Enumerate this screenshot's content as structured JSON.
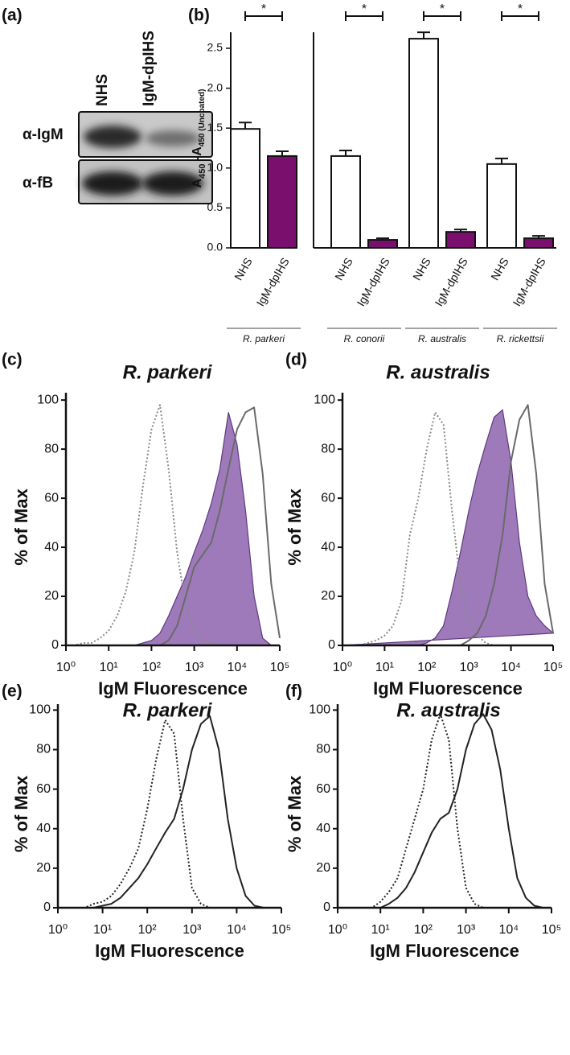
{
  "blot": {
    "label": "(a)",
    "lanes": [
      "NHS",
      "IgM-dpIHS"
    ],
    "rows": [
      "α-IgM",
      "α-fB"
    ]
  },
  "chart_data": [
    {
      "type": "bar",
      "panel_label": "(b)",
      "ylabel_parts": [
        "A",
        "450",
        " -A",
        "450 (Uncoated)"
      ],
      "categories": [
        "R. parkeri",
        "R. conorii",
        "R. australis",
        "R. rickettsii"
      ],
      "series": [
        {
          "name": "NHS",
          "color": "#ffffff",
          "values": [
            1.49,
            1.15,
            2.62,
            1.05
          ],
          "errors": [
            0.08,
            0.07,
            0.08,
            0.07
          ]
        },
        {
          "name": "IgM-dpIHS",
          "color": "#7b0f6e",
          "values": [
            1.15,
            0.1,
            0.2,
            0.12
          ],
          "errors": [
            0.06,
            0.02,
            0.03,
            0.03
          ]
        }
      ],
      "annotations": [
        "*",
        "*",
        "*",
        "*"
      ],
      "ylim": [
        0,
        2.7
      ],
      "yticks": [
        {
          "value": 0,
          "label": "0.0"
        },
        0.5,
        {
          "value": 1,
          "label": "1.0"
        },
        1.5,
        {
          "value": 2,
          "label": "2.0"
        },
        2.5
      ]
    },
    {
      "type": "histogram-overlay",
      "panel_label": "(c)",
      "title": "R. parkeri",
      "xlabel": "IgM Fluorescence",
      "ylabel": "% of Max",
      "xscale": "log",
      "xlim": [
        1,
        100000
      ],
      "ylim": [
        0,
        103
      ],
      "xticks": [
        {
          "value": 1,
          "label": "10⁰"
        },
        {
          "value": 10,
          "label": "10¹"
        },
        {
          "value": 100,
          "label": "10²"
        },
        {
          "value": 1000,
          "label": "10³"
        },
        {
          "value": 10000,
          "label": "10⁴"
        },
        {
          "value": 100000,
          "label": "10⁵"
        }
      ],
      "yticks": [
        0,
        20,
        40,
        60,
        80,
        100
      ],
      "x": [
        1,
        1.58,
        2.51,
        3.98,
        6.31,
        10,
        15.8,
        25.1,
        39.8,
        63.1,
        100,
        158,
        251,
        398,
        631,
        1000,
        1585,
        2512,
        3981,
        6310,
        10000,
        15849,
        25119,
        39811,
        63096,
        100000
      ],
      "series": [
        {
          "style": "filled",
          "color": "#8d63ae",
          "values": [
            0,
            0,
            0,
            0,
            0,
            0,
            0,
            0,
            0,
            1,
            2,
            5,
            12,
            20,
            28,
            38,
            47,
            58,
            72,
            95,
            82,
            55,
            20,
            3,
            0,
            0
          ]
        },
        {
          "style": "dotted",
          "color": "#8a8a8a",
          "values": [
            0,
            0,
            1,
            1,
            3,
            6,
            12,
            22,
            38,
            65,
            88,
            98,
            72,
            38,
            16,
            6,
            2,
            1,
            0,
            0,
            0,
            0,
            0,
            0,
            0,
            0
          ]
        },
        {
          "style": "solid",
          "color": "#6a6a6a",
          "values": [
            0,
            0,
            0,
            0,
            0,
            0,
            0,
            0,
            0,
            0,
            0,
            0,
            2,
            8,
            20,
            32,
            37,
            42,
            55,
            72,
            88,
            95,
            97,
            70,
            25,
            3
          ]
        }
      ]
    },
    {
      "type": "histogram-overlay",
      "panel_label": "(d)",
      "title": "R. australis",
      "xlabel": "IgM Fluorescence",
      "ylabel": "% of Max",
      "xscale": "log",
      "xlim": [
        1,
        100000
      ],
      "ylim": [
        0,
        103
      ],
      "xticks": [
        {
          "value": 1,
          "label": "10⁰"
        },
        {
          "value": 10,
          "label": "10¹"
        },
        {
          "value": 100,
          "label": "10²"
        },
        {
          "value": 1000,
          "label": "10³"
        },
        {
          "value": 10000,
          "label": "10⁴"
        },
        {
          "value": 100000,
          "label": "10⁵"
        }
      ],
      "yticks": [
        0,
        20,
        40,
        60,
        80,
        100
      ],
      "x": [
        1,
        1.58,
        2.51,
        3.98,
        6.31,
        10,
        15.8,
        25.1,
        39.8,
        63.1,
        100,
        158,
        251,
        398,
        631,
        1000,
        1585,
        2512,
        3981,
        6310,
        10000,
        15849,
        25119,
        39811,
        63096,
        100000
      ],
      "series": [
        {
          "style": "filled",
          "color": "#8d63ae",
          "values": [
            0,
            0,
            0,
            0,
            0,
            0,
            0,
            0,
            0,
            0,
            1,
            3,
            8,
            22,
            38,
            55,
            70,
            82,
            93,
            96,
            75,
            42,
            20,
            12,
            8,
            5
          ]
        },
        {
          "style": "dotted",
          "color": "#8a8a8a",
          "values": [
            0,
            0,
            0,
            1,
            2,
            4,
            8,
            18,
            45,
            60,
            80,
            95,
            90,
            55,
            25,
            10,
            4,
            1,
            0,
            0,
            0,
            0,
            0,
            0,
            0,
            0
          ]
        },
        {
          "style": "solid",
          "color": "#6a6a6a",
          "values": [
            0,
            0,
            0,
            0,
            0,
            0,
            0,
            0,
            0,
            0,
            0,
            0,
            0,
            0,
            0,
            2,
            5,
            12,
            25,
            45,
            75,
            92,
            98,
            70,
            25,
            5
          ]
        }
      ]
    },
    {
      "type": "histogram-overlay",
      "panel_label": "(e)",
      "title": "R. parkeri",
      "xlabel": "IgM Fluorescence",
      "ylabel": "% of Max",
      "xscale": "log",
      "xlim": [
        1,
        100000
      ],
      "ylim": [
        0,
        103
      ],
      "xticks": [
        {
          "value": 1,
          "label": "10⁰"
        },
        {
          "value": 10,
          "label": "10¹"
        },
        {
          "value": 100,
          "label": "10²"
        },
        {
          "value": 1000,
          "label": "10³"
        },
        {
          "value": 10000,
          "label": "10⁴"
        },
        {
          "value": 100000,
          "label": "10⁵"
        }
      ],
      "yticks": [
        0,
        20,
        40,
        60,
        80,
        100
      ],
      "x": [
        1,
        1.58,
        2.51,
        3.98,
        6.31,
        10,
        15.8,
        25.1,
        39.8,
        63.1,
        100,
        158,
        251,
        398,
        631,
        1000,
        1585,
        2512,
        3981,
        6310,
        10000,
        15849,
        25119,
        39811,
        63096,
        100000
      ],
      "series": [
        {
          "style": "dotted",
          "color": "#222222",
          "values": [
            0,
            0,
            0,
            0,
            2,
            3,
            6,
            12,
            20,
            30,
            50,
            75,
            95,
            88,
            45,
            10,
            2,
            0,
            0,
            0,
            0,
            0,
            0,
            0,
            0,
            0
          ]
        },
        {
          "style": "solid",
          "color": "#222222",
          "values": [
            0,
            0,
            0,
            0,
            0,
            1,
            2,
            5,
            10,
            15,
            22,
            30,
            38,
            45,
            60,
            80,
            93,
            97,
            80,
            45,
            20,
            6,
            1,
            0,
            0,
            0
          ]
        }
      ]
    },
    {
      "type": "histogram-overlay",
      "panel_label": "(f)",
      "title": "R. australis",
      "xlabel": "IgM Fluorescence",
      "ylabel": "% of Max",
      "xscale": "log",
      "xlim": [
        1,
        100000
      ],
      "ylim": [
        0,
        103
      ],
      "xticks": [
        {
          "value": 1,
          "label": "10⁰"
        },
        {
          "value": 10,
          "label": "10¹"
        },
        {
          "value": 100,
          "label": "10²"
        },
        {
          "value": 1000,
          "label": "10³"
        },
        {
          "value": 10000,
          "label": "10⁴"
        },
        {
          "value": 100000,
          "label": "10⁵"
        }
      ],
      "yticks": [
        0,
        20,
        40,
        60,
        80,
        100
      ],
      "x": [
        1,
        1.58,
        2.51,
        3.98,
        6.31,
        10,
        15.8,
        25.1,
        39.8,
        63.1,
        100,
        158,
        251,
        398,
        631,
        1000,
        1585,
        2512,
        3981,
        6310,
        10000,
        15849,
        25119,
        39811,
        63096,
        100000
      ],
      "series": [
        {
          "style": "dotted",
          "color": "#222222",
          "values": [
            0,
            0,
            0,
            0,
            0,
            3,
            8,
            15,
            30,
            45,
            60,
            85,
            98,
            85,
            40,
            10,
            2,
            0,
            0,
            0,
            0,
            0,
            0,
            0,
            0,
            0
          ]
        },
        {
          "style": "solid",
          "color": "#222222",
          "values": [
            0,
            0,
            0,
            0,
            0,
            0,
            2,
            5,
            10,
            18,
            28,
            38,
            45,
            48,
            60,
            80,
            93,
            98,
            90,
            70,
            40,
            15,
            5,
            1,
            0,
            0
          ]
        }
      ]
    }
  ]
}
